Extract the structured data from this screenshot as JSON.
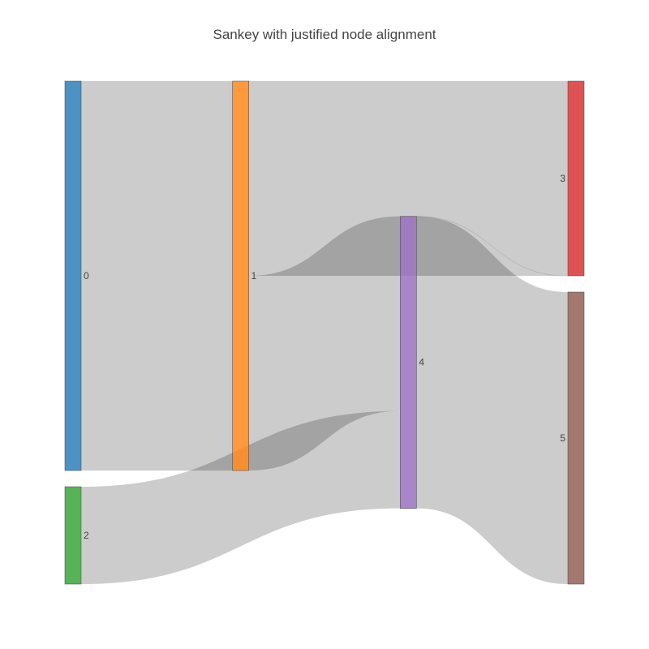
{
  "chart_data": {
    "type": "sankey",
    "title": "Sankey with justified node alignment",
    "arrangement": "justify",
    "nodes": [
      {
        "label": "0",
        "color": "#1f77b4"
      },
      {
        "label": "1",
        "color": "#ff7f0e"
      },
      {
        "label": "2",
        "color": "#2ca02c"
      },
      {
        "label": "3",
        "color": "#d62728"
      },
      {
        "label": "4",
        "color": "#9467bd"
      },
      {
        "label": "5",
        "color": "#8c564b"
      }
    ],
    "links": [
      {
        "source": 0,
        "target": 1,
        "value": 8
      },
      {
        "source": 1,
        "target": 3,
        "value": 4
      },
      {
        "source": 1,
        "target": 4,
        "value": 4
      },
      {
        "source": 2,
        "target": 4,
        "value": 2
      },
      {
        "source": 4,
        "target": 3,
        "value": 0
      },
      {
        "source": 4,
        "target": 5,
        "value": 6
      }
    ],
    "link_color": "#000000",
    "link_opacity": 0.2,
    "node_opacity": 0.8
  }
}
